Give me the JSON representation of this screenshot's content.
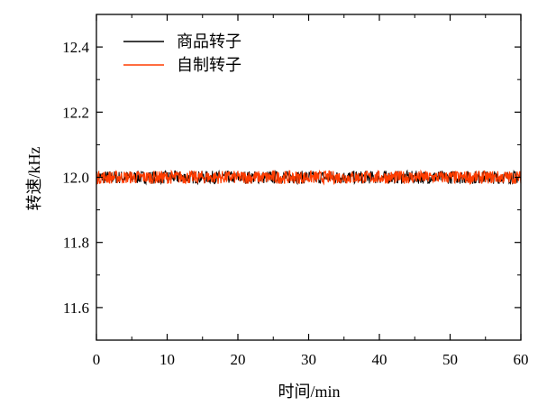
{
  "chart_data": {
    "type": "line",
    "xlabel": "时间/min",
    "ylabel": "转速/kHz",
    "xlim": [
      0,
      60
    ],
    "ylim": [
      11.5,
      12.5
    ],
    "x_ticks": [
      "0",
      "10",
      "20",
      "30",
      "40",
      "50",
      "60"
    ],
    "y_ticks": [
      "11.6",
      "11.8",
      "12.0",
      "12.2",
      "12.4"
    ],
    "legend_position": "top-left",
    "grid": false,
    "series": [
      {
        "name": "商品转子",
        "color": "#000000",
        "x": [
          0,
          5,
          10,
          15,
          20,
          25,
          30,
          35,
          40,
          45,
          50,
          55,
          60
        ],
        "values": [
          12.0,
          12.0,
          12.0,
          12.0,
          12.0,
          12.0,
          12.0,
          12.0,
          12.0,
          12.0,
          12.0,
          12.0,
          12.0
        ],
        "noise_band": 0.02
      },
      {
        "name": "自制转子",
        "color": "#ff3d00",
        "x": [
          0,
          5,
          10,
          15,
          20,
          25,
          30,
          35,
          40,
          45,
          50,
          55,
          60
        ],
        "values": [
          12.0,
          12.0,
          12.0,
          12.0,
          12.0,
          12.0,
          12.0,
          12.0,
          12.0,
          12.0,
          12.0,
          12.0,
          12.0
        ],
        "noise_band": 0.02
      }
    ]
  }
}
